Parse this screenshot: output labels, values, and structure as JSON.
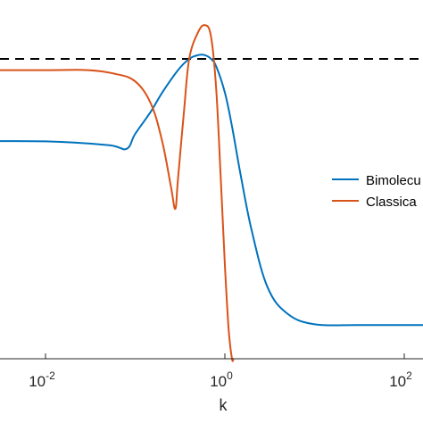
{
  "chart_data": {
    "type": "line",
    "title": "",
    "xlabel": "k",
    "ylabel": "",
    "xscale": "log",
    "xlim": [
      0.0001,
      10000
    ],
    "ylim": [
      0,
      1
    ],
    "grid": false,
    "x_ticks": [
      {
        "base": "10",
        "exp": "-2",
        "value": 0.01
      },
      {
        "base": "10",
        "exp": "0",
        "value": 1
      },
      {
        "base": "10",
        "exp": "2",
        "value": 100
      }
    ],
    "reference_line": {
      "style": "dashed",
      "y": 0.8,
      "color": "#000000"
    },
    "legend": {
      "position": "right"
    },
    "series": [
      {
        "name": "Bimolecu",
        "color": "#0072BD",
        "x": [
          0.0001,
          0.001,
          0.01,
          0.05,
          0.08,
          0.1,
          0.15,
          0.2,
          0.3,
          0.4,
          0.5,
          0.6,
          0.7,
          0.8,
          1.0,
          1.2,
          1.5,
          2.0,
          3.0,
          5.0,
          10,
          30,
          100,
          1000,
          10000
        ],
        "y": [
          0.58,
          0.58,
          0.58,
          0.57,
          0.56,
          0.6,
          0.66,
          0.71,
          0.77,
          0.8,
          0.81,
          0.81,
          0.8,
          0.78,
          0.71,
          0.62,
          0.49,
          0.34,
          0.19,
          0.12,
          0.092,
          0.09,
          0.09,
          0.09,
          0.09
        ]
      },
      {
        "name": "Classica",
        "color": "#D95319",
        "x": [
          0.0001,
          0.001,
          0.01,
          0.03,
          0.06,
          0.1,
          0.15,
          0.2,
          0.25,
          0.28,
          0.3,
          0.35,
          0.4,
          0.5,
          0.6,
          0.7,
          0.8,
          0.9,
          1.0,
          1.1,
          1.2,
          1.25
        ],
        "y": [
          0.77,
          0.77,
          0.77,
          0.77,
          0.76,
          0.74,
          0.68,
          0.58,
          0.46,
          0.4,
          0.48,
          0.66,
          0.8,
          0.87,
          0.89,
          0.86,
          0.72,
          0.48,
          0.25,
          0.08,
          0.0,
          0.0
        ]
      }
    ]
  }
}
